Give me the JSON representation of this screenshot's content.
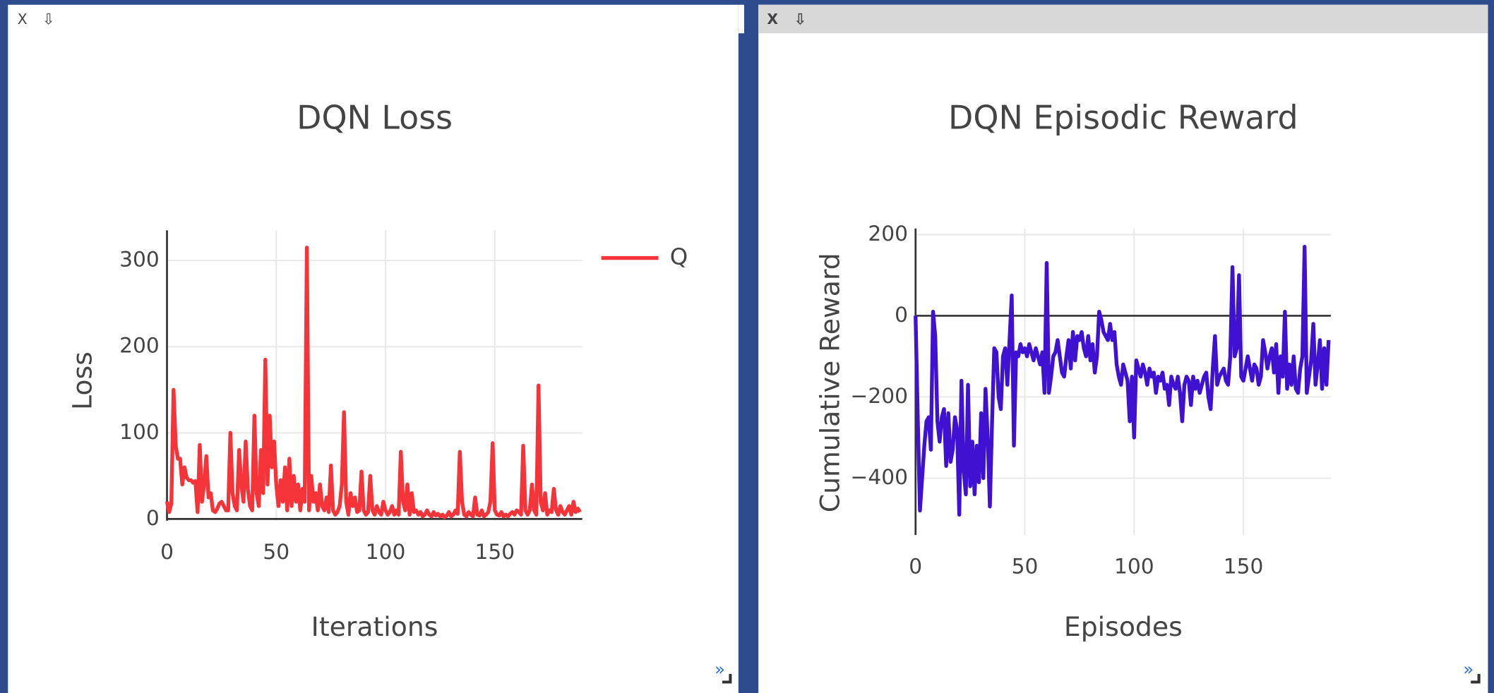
{
  "panes": [
    {
      "close": "X",
      "download": "⇩",
      "expand": "»"
    },
    {
      "close": "X",
      "download": "⇩",
      "expand": "»"
    }
  ],
  "chart_data": [
    {
      "type": "line",
      "title": "DQN Loss",
      "xlabel": "Iterations",
      "ylabel": "Loss",
      "xlim": [
        0,
        190
      ],
      "ylim": [
        -2,
        335
      ],
      "xticks": [
        0,
        50,
        100,
        150
      ],
      "yticks": [
        0,
        100,
        200,
        300
      ],
      "grid": true,
      "legend": "right",
      "series": [
        {
          "name": "Q",
          "color": "#f5343a",
          "values": [
            20,
            8,
            18,
            150,
            85,
            70,
            70,
            40,
            60,
            48,
            45,
            45,
            42,
            44,
            8,
            86,
            20,
            40,
            73,
            25,
            30,
            10,
            8,
            12,
            18,
            20,
            15,
            10,
            10,
            100,
            30,
            15,
            10,
            80,
            40,
            20,
            90,
            35,
            15,
            10,
            120,
            30,
            15,
            80,
            30,
            185,
            40,
            120,
            60,
            90,
            40,
            15,
            45,
            20,
            60,
            10,
            70,
            15,
            50,
            20,
            40,
            10,
            35,
            20,
            315,
            10,
            50,
            20,
            30,
            10,
            40,
            15,
            10,
            25,
            8,
            62,
            10,
            5,
            8,
            15,
            40,
            124,
            20,
            5,
            30,
            15,
            25,
            8,
            10,
            55,
            10,
            5,
            8,
            50,
            10,
            5,
            15,
            8,
            5,
            20,
            10,
            5,
            8,
            15,
            5,
            10,
            5,
            78,
            20,
            10,
            40,
            5,
            30,
            8,
            10,
            5,
            8,
            3,
            5,
            10,
            5,
            3,
            8,
            4,
            6,
            3,
            5,
            2,
            4,
            8,
            3,
            5,
            10,
            6,
            78,
            20,
            5,
            3,
            8,
            5,
            3,
            25,
            5,
            4,
            10,
            3,
            5,
            8,
            20,
            88,
            10,
            5,
            4,
            8,
            3,
            5,
            3,
            6,
            8,
            5,
            10,
            8,
            5,
            85,
            10,
            5,
            10,
            40,
            10,
            5,
            155,
            20,
            10,
            30,
            5,
            10,
            8,
            35,
            10,
            5,
            15,
            8,
            5,
            10,
            15,
            5,
            20,
            8,
            12,
            8
          ]
        }
      ]
    },
    {
      "type": "line",
      "title": "DQN Episodic Reward",
      "xlabel": "Episodes",
      "ylabel": "Cumulative Reward",
      "xlim": [
        0,
        190
      ],
      "ylim": [
        -540,
        215
      ],
      "xticks": [
        0,
        50,
        100,
        150
      ],
      "yticks": [
        {
          "value": -400,
          "label": "−400"
        },
        {
          "value": -200,
          "label": "−200"
        },
        0,
        200
      ],
      "grid": true,
      "series": [
        {
          "color": "#3f12d2",
          "values": [
            0,
            -250,
            -480,
            -400,
            -320,
            -260,
            -250,
            -330,
            10,
            -50,
            -260,
            -310,
            -250,
            -230,
            -370,
            -240,
            -360,
            -330,
            -250,
            -280,
            -490,
            -160,
            -380,
            -440,
            -170,
            -420,
            -310,
            -440,
            -320,
            -410,
            -240,
            -400,
            -180,
            -300,
            -470,
            -260,
            -80,
            -90,
            -200,
            -230,
            -100,
            -80,
            -170,
            -60,
            50,
            -320,
            -90,
            -100,
            -70,
            -90,
            -80,
            -100,
            -70,
            -90,
            -110,
            -80,
            -100,
            -120,
            -90,
            -190,
            130,
            -190,
            -150,
            -100,
            -90,
            -60,
            -100,
            -140,
            -150,
            -100,
            -60,
            -130,
            -40,
            -110,
            -50,
            -60,
            -40,
            -80,
            -100,
            -50,
            -110,
            -70,
            -140,
            -100,
            10,
            -10,
            -40,
            -50,
            -60,
            -20,
            -60,
            -40,
            -120,
            -150,
            -170,
            -120,
            -140,
            -160,
            -260,
            -150,
            -300,
            -110,
            -130,
            -150,
            -120,
            -140,
            -170,
            -130,
            -150,
            -140,
            -190,
            -150,
            -160,
            -140,
            -180,
            -170,
            -220,
            -150,
            -170,
            -180,
            -150,
            -190,
            -260,
            -170,
            -150,
            -160,
            -220,
            -150,
            -180,
            -160,
            -190,
            -170,
            -150,
            -140,
            -200,
            -230,
            -130,
            -50,
            -170,
            -150,
            -140,
            -130,
            -160,
            -170,
            -100,
            120,
            -100,
            -80,
            100,
            -150,
            -160,
            -130,
            -100,
            -130,
            -160,
            -120,
            -130,
            -170,
            -150,
            -60,
            -90,
            -130,
            -100,
            -80,
            -140,
            -70,
            -190,
            -100,
            -150,
            10,
            -180,
            -120,
            -170,
            -100,
            -180,
            -190,
            -130,
            -100,
            170,
            -190,
            -150,
            -110,
            -20,
            -170,
            -120,
            -60,
            -180,
            -80,
            -170,
            -60
          ]
        }
      ]
    }
  ]
}
